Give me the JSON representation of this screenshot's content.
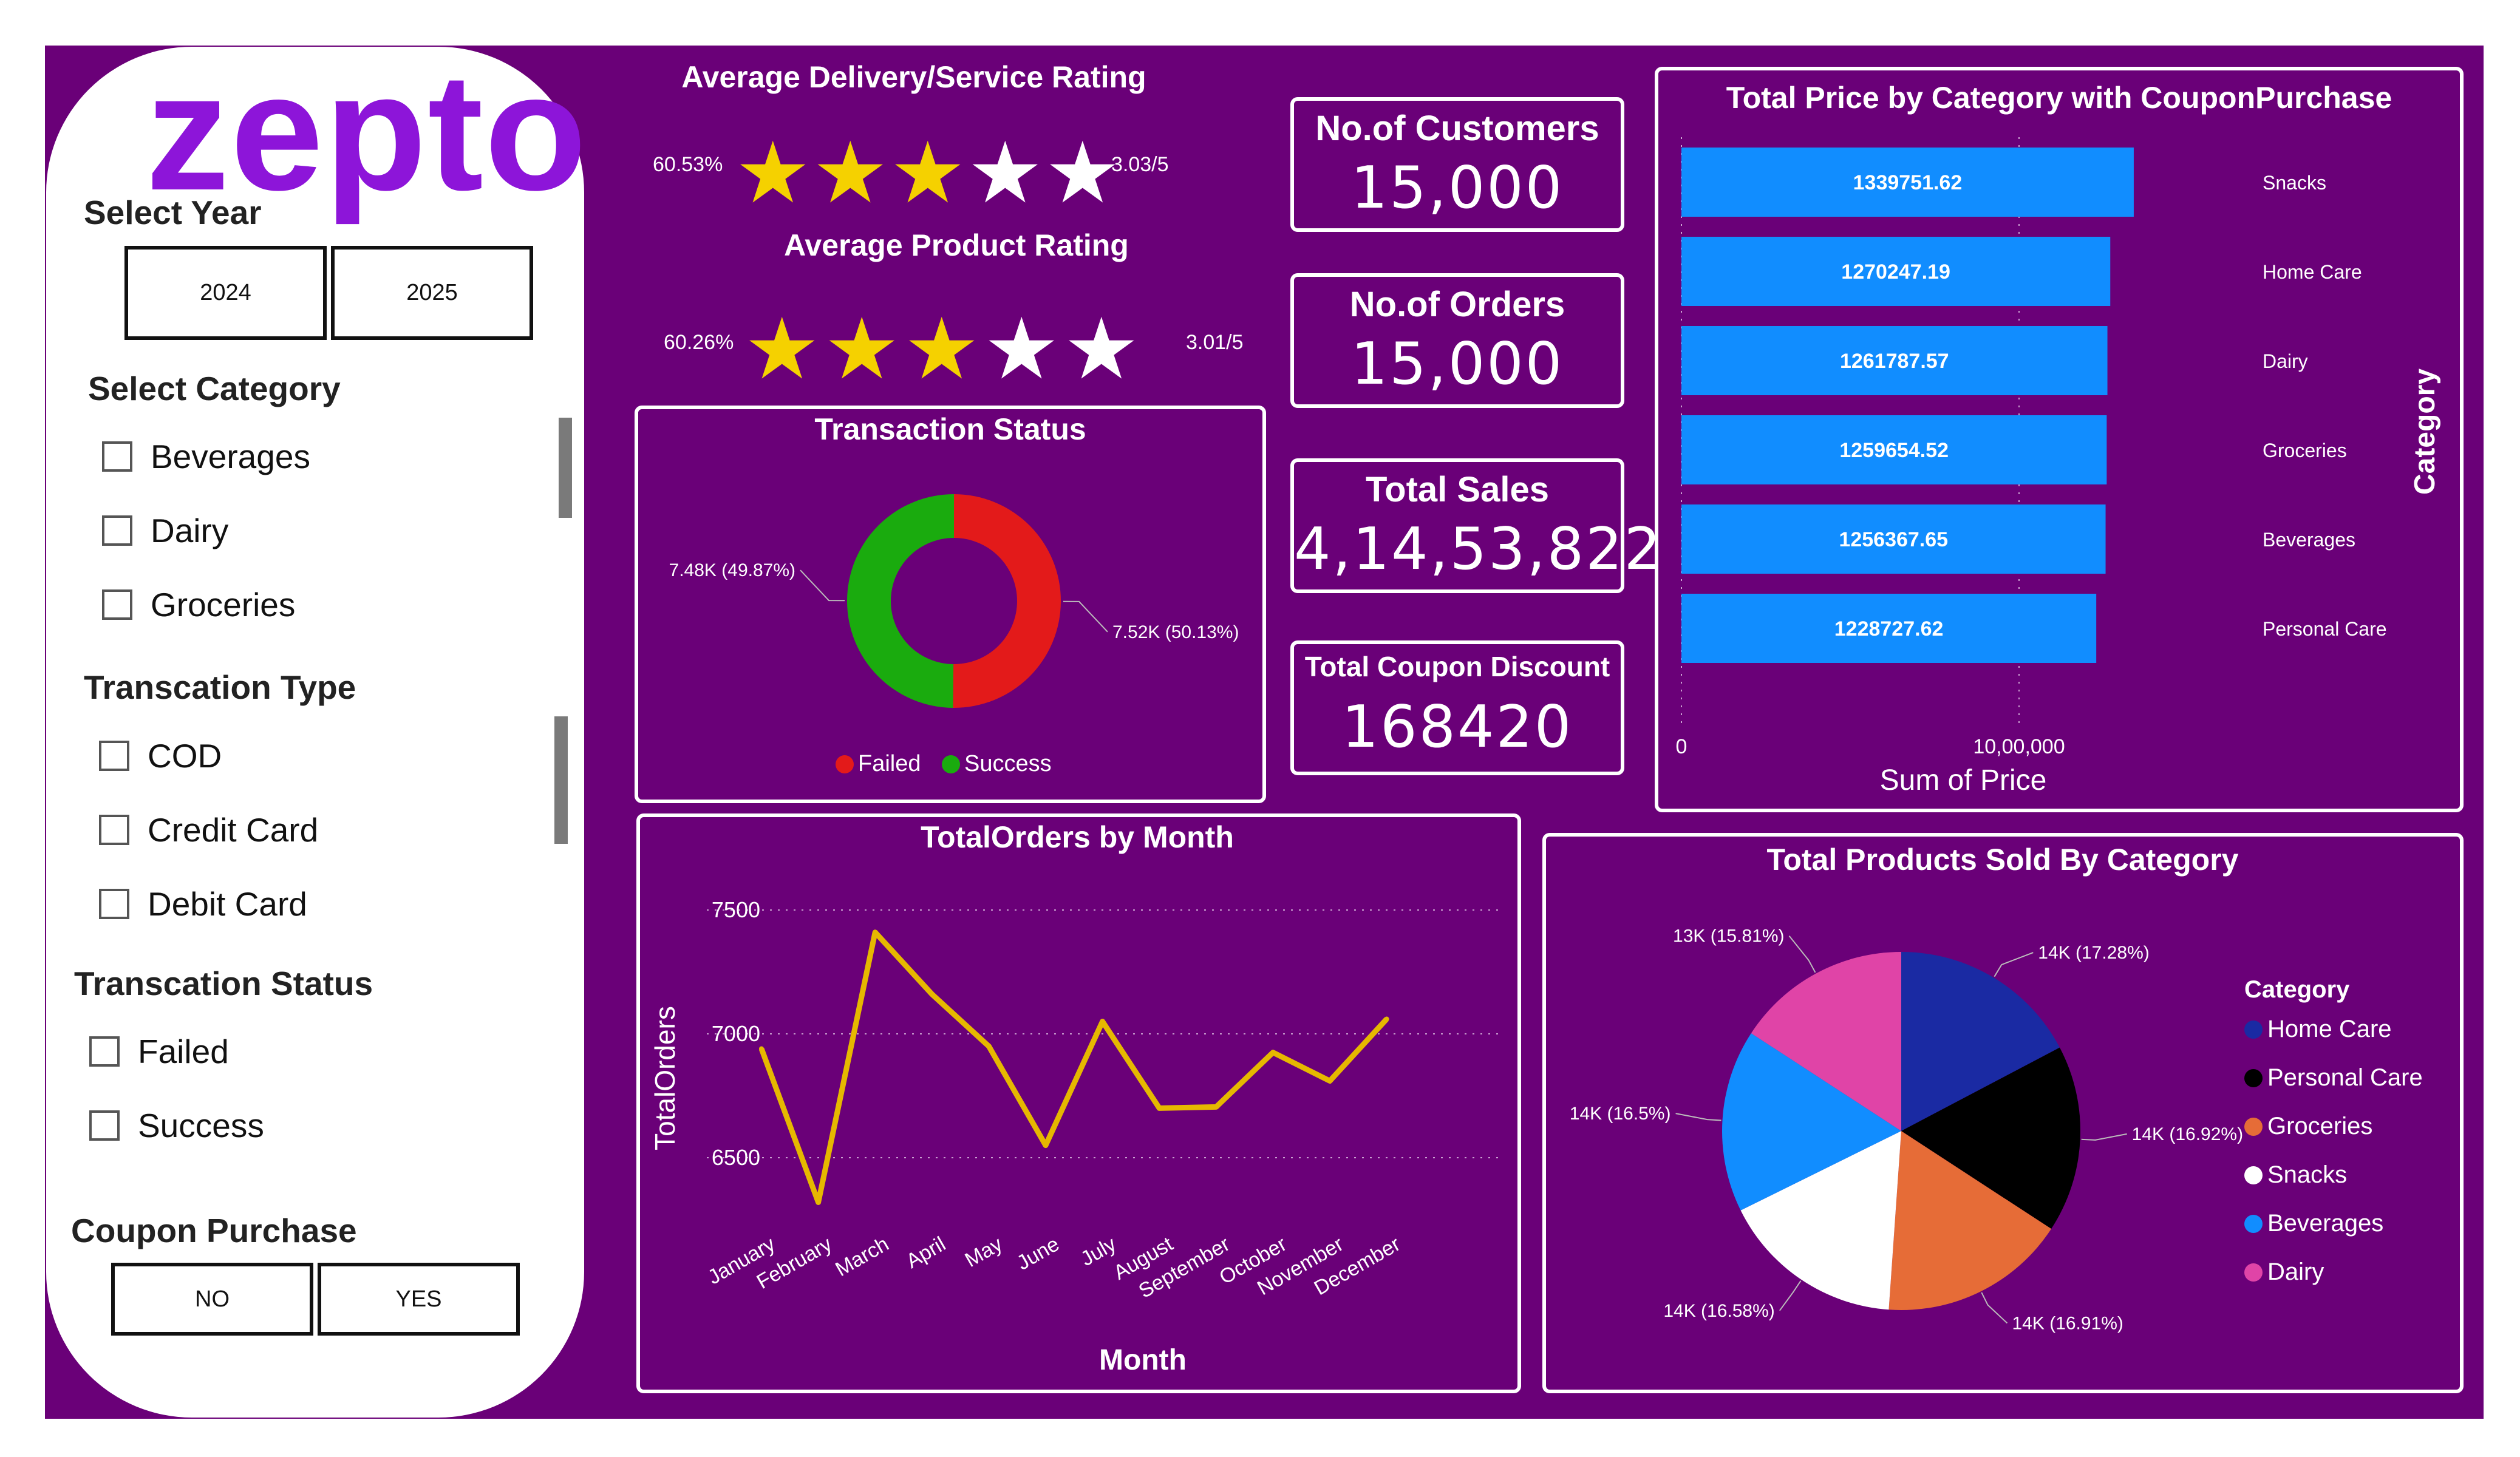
{
  "logo": "zepto",
  "sidebar": {
    "year_title": "Select Year",
    "years": [
      "2024",
      "2025"
    ],
    "category_title": "Select Category",
    "categories": [
      "Beverages",
      "Dairy",
      "Groceries"
    ],
    "txn_type_title": "Transcation Type",
    "txn_types": [
      "COD",
      "Credit Card",
      "Debit Card"
    ],
    "txn_status_title": "Transcation Status",
    "txn_statuses": [
      "Failed",
      "Success"
    ],
    "coupon_title": "Coupon Purchase",
    "coupon_options": [
      "NO",
      "YES"
    ]
  },
  "ratings": {
    "delivery_title": "Average Delivery/Service Rating",
    "delivery_pct": "60.53%",
    "delivery_score": "3.03/5",
    "delivery_filled": 3,
    "product_title": "Average Product Rating",
    "product_pct": "60.26%",
    "product_score": "3.01/5",
    "product_filled": 3,
    "star_glyph": "★"
  },
  "kpis": {
    "customers_label": "No.of Customers",
    "customers_value": "15,000",
    "orders_label": "No.of Orders",
    "orders_value": "15,000",
    "sales_label": "Total Sales",
    "sales_value": "4,14,53,822",
    "coupon_label": "Total Coupon Discount",
    "coupon_value": "168420"
  },
  "colors": {
    "background": "#6a0078",
    "logo": "#8d15d9",
    "bar": "#118dff",
    "failed": "#e31a1a",
    "success": "#1aab0e",
    "line": "#e6b800",
    "star_filled": "#f5d100",
    "star_empty": "#ffffff"
  },
  "chart_data": [
    {
      "id": "transaction-status",
      "type": "pie",
      "variant": "donut",
      "title": "Transaction Status",
      "labels": [
        "Failed",
        "Success"
      ],
      "values": [
        7520,
        7480
      ],
      "data_labels": [
        "7.52K (50.13%)",
        "7.48K (49.87%)"
      ],
      "colors": [
        "#e31a1a",
        "#1aab0e"
      ],
      "legend_position": "bottom"
    },
    {
      "id": "price-by-category",
      "type": "bar",
      "orientation": "horizontal",
      "title": "Total Price by Category with CouponPurchase",
      "categories": [
        "Snacks",
        "Home Care",
        "Dairy",
        "Groceries",
        "Beverages",
        "Personal Care"
      ],
      "values": [
        1339751.62,
        1270247.19,
        1261787.57,
        1259654.52,
        1256367.65,
        1228727.62
      ],
      "data_labels": [
        "1339751.62",
        "1270247.19",
        "1261787.57",
        "1259654.52",
        "1256367.65",
        "1228727.62"
      ],
      "xlabel": "Sum of Price",
      "ylabel": "Category",
      "xticks": [
        "0",
        "10,00,000"
      ],
      "xtick_values": [
        0,
        1000000
      ],
      "xlim": [
        0,
        1500000
      ],
      "grid": true
    },
    {
      "id": "orders-by-month",
      "type": "line",
      "title": "TotalOrders by Month",
      "categories": [
        "January",
        "February",
        "March",
        "April",
        "May",
        "June",
        "July",
        "August",
        "September",
        "October",
        "November",
        "December"
      ],
      "values": [
        6940,
        6320,
        7410,
        7160,
        6950,
        6550,
        7050,
        6700,
        6705,
        6925,
        6810,
        7060
      ],
      "xlabel": "Month",
      "ylabel": "TotalOrders",
      "yticks": [
        "6500",
        "7000",
        "7500"
      ],
      "ytick_values": [
        6500,
        7000,
        7500
      ],
      "ylim": [
        6250,
        7600
      ],
      "grid": true
    },
    {
      "id": "products-by-category",
      "type": "pie",
      "title": "Total Products Sold By Category",
      "legend_title": "Category",
      "labels": [
        "Home Care",
        "Personal Care",
        "Groceries",
        "Snacks",
        "Beverages",
        "Dairy"
      ],
      "values": [
        17.28,
        16.92,
        16.91,
        16.58,
        16.5,
        15.81
      ],
      "data_labels": [
        "14K (17.28%)",
        "14K (16.92%)",
        "14K (16.91%)",
        "14K (16.58%)",
        "14K (16.5%)",
        "13K (15.81%)"
      ],
      "colors": [
        "#1a2aa3",
        "#000000",
        "#e66c37",
        "#ffffff",
        "#118dff",
        "#e044a7"
      ],
      "legend_position": "right"
    }
  ]
}
